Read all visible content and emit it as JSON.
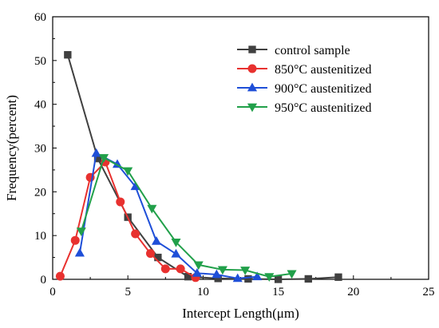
{
  "chart_data": {
    "type": "line",
    "title": "",
    "xlabel": "Intercept Length(μm)",
    "ylabel": "Frequency(percent)",
    "xlim": [
      0,
      25
    ],
    "ylim": [
      0,
      60
    ],
    "xticks": [
      "0",
      "5",
      "10",
      "15",
      "20",
      "25"
    ],
    "yticks": [
      "0",
      "10",
      "20",
      "30",
      "40",
      "50",
      "60"
    ],
    "grid": false,
    "legend_position": "top-right",
    "series": [
      {
        "name": "control sample",
        "marker": "square",
        "color": "#404040",
        "x": [
          1.0,
          3.0,
          5.0,
          7.0,
          9.0,
          11.0,
          13.0,
          15.0,
          17.0,
          19.0
        ],
        "y": [
          51.3,
          27.6,
          14.2,
          5.0,
          0.6,
          0.2,
          0.1,
          0.0,
          0.1,
          0.5
        ]
      },
      {
        "name": "850°C austenitized",
        "marker": "circle",
        "color": "#e8312f",
        "x": [
          0.5,
          1.5,
          2.5,
          3.5,
          4.5,
          5.5,
          6.5,
          7.5,
          8.5,
          9.5
        ],
        "y": [
          0.7,
          8.9,
          23.3,
          26.8,
          17.7,
          10.4,
          5.9,
          2.4,
          2.4,
          0.4
        ]
      },
      {
        "name": "900°C austenitized",
        "marker": "triangle-up",
        "color": "#1f4fd8",
        "x": [
          1.8,
          2.9,
          4.3,
          5.5,
          6.9,
          8.2,
          9.6,
          10.9,
          12.3,
          13.6
        ],
        "y": [
          6.0,
          28.8,
          26.3,
          21.2,
          8.7,
          5.8,
          1.4,
          1.1,
          0.2,
          0.6
        ]
      },
      {
        "name": "950°C austenitized",
        "marker": "triangle-down",
        "color": "#21a04a",
        "x": [
          1.9,
          3.4,
          5.0,
          6.6,
          8.2,
          9.7,
          11.3,
          12.8,
          14.4,
          15.9
        ],
        "y": [
          11.0,
          27.8,
          24.8,
          16.2,
          8.5,
          3.3,
          2.2,
          2.1,
          0.6,
          1.3
        ]
      }
    ]
  }
}
